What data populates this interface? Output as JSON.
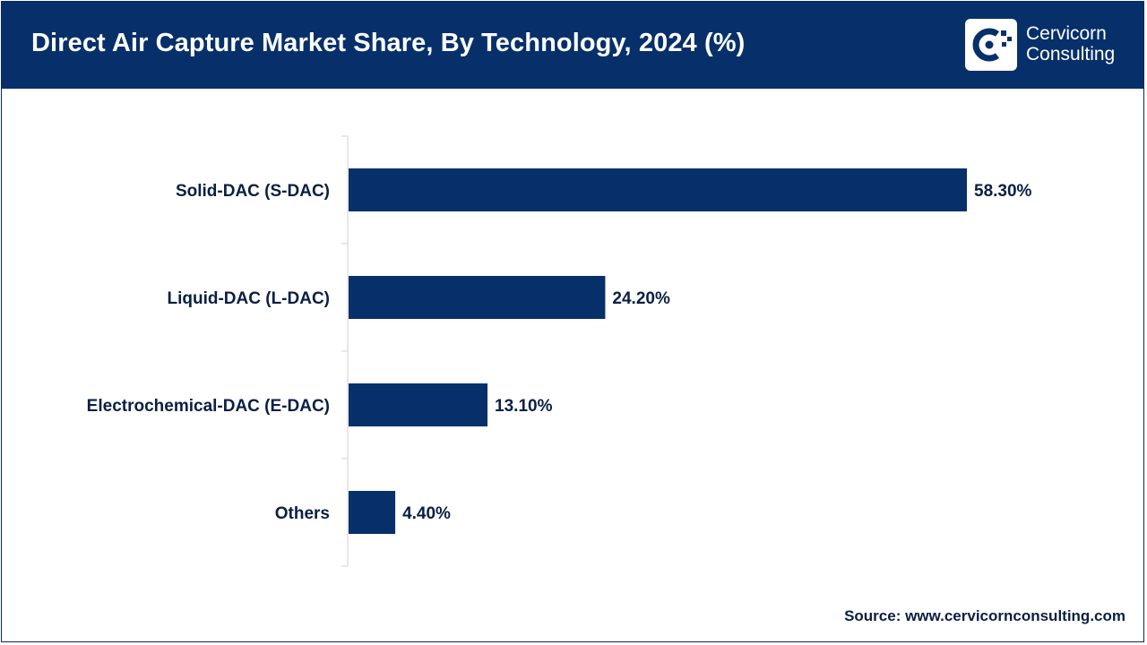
{
  "header": {
    "title": "Direct Air Capture Market Share, By Technology, 2024 (%)",
    "logo_line1": "Cervicorn",
    "logo_line2": "Consulting"
  },
  "footer": {
    "source": "Source: www.cervicornconsulting.com"
  },
  "colors": {
    "header_bg": "#07306a",
    "bar": "#07306a",
    "text": "#0a1f44"
  },
  "chart_data": {
    "type": "bar",
    "orientation": "horizontal",
    "title": "Direct Air Capture Market Share, By Technology, 2024 (%)",
    "categories": [
      "Solid-DAC (S-DAC)",
      "Liquid-DAC (L-DAC)",
      "Electrochemical-DAC (E-DAC)",
      "Others"
    ],
    "values": [
      58.3,
      24.2,
      13.1,
      4.4
    ],
    "value_labels": [
      "58.30%",
      "24.20%",
      "13.10%",
      "4.40%"
    ],
    "xlim": [
      0,
      100
    ],
    "grid": false,
    "legend": "none"
  }
}
